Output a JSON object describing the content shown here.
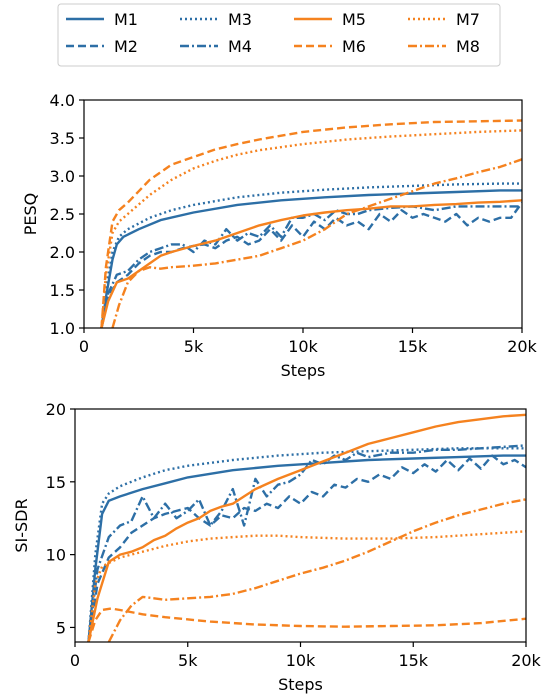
{
  "colors": {
    "blue": "#2d6fa6",
    "orange": "#f5821f",
    "axis": "#000000",
    "legend_border": "#cccccc"
  },
  "legend": {
    "placement": "top-center",
    "columns": 4,
    "entries": [
      {
        "label": "M1",
        "color": "#2d6fa6",
        "dash": "solid"
      },
      {
        "label": "M2",
        "color": "#2d6fa6",
        "dash": "dashed"
      },
      {
        "label": "M3",
        "color": "#2d6fa6",
        "dash": "dotted"
      },
      {
        "label": "M4",
        "color": "#2d6fa6",
        "dash": "dashdot"
      },
      {
        "label": "M5",
        "color": "#f5821f",
        "dash": "solid"
      },
      {
        "label": "M6",
        "color": "#f5821f",
        "dash": "dashed"
      },
      {
        "label": "M7",
        "color": "#f5821f",
        "dash": "dotted"
      },
      {
        "label": "M8",
        "color": "#f5821f",
        "dash": "dashdot"
      }
    ]
  },
  "chart_data": [
    {
      "type": "line",
      "xlabel": "Steps",
      "ylabel": "PESQ",
      "xlim": [
        0,
        20000
      ],
      "ylim": [
        1.0,
        4.0
      ],
      "xticks": [
        0,
        5000,
        10000,
        15000,
        20000
      ],
      "xticklabels": [
        "0",
        "5k",
        "10k",
        "15k",
        "20k"
      ],
      "yticks": [
        1.0,
        1.5,
        2.0,
        2.5,
        3.0,
        3.5,
        4.0
      ],
      "yticklabels": [
        "1.0",
        "1.5",
        "2.0",
        "2.5",
        "3.0",
        "3.5",
        "4.0"
      ],
      "grid": false,
      "series": [
        {
          "name": "M1",
          "color": "#2d6fa6",
          "dash": "solid",
          "x": [
            800,
            1000,
            1300,
            1500,
            1800,
            2500,
            3500,
            5000,
            7000,
            9000,
            11000,
            13000,
            15000,
            17000,
            19000,
            20000
          ],
          "y": [
            1.0,
            1.4,
            1.9,
            2.1,
            2.2,
            2.3,
            2.42,
            2.52,
            2.62,
            2.68,
            2.72,
            2.75,
            2.77,
            2.79,
            2.81,
            2.81
          ]
        },
        {
          "name": "M2",
          "color": "#2d6fa6",
          "dash": "dashed",
          "x": [
            800,
            1100,
            1500,
            2000,
            2500,
            3000,
            3500,
            4000,
            4500,
            5000,
            5500,
            6000,
            6500,
            7000,
            7500,
            8000,
            8500,
            9000,
            9500,
            10000,
            10500,
            11000,
            11500,
            12000,
            12500,
            13000,
            13500,
            14000,
            14500,
            15000,
            15500,
            16000,
            16500,
            17000,
            17500,
            18000,
            18500,
            19000,
            19500,
            20000
          ],
          "y": [
            1.0,
            1.4,
            1.6,
            1.7,
            1.85,
            1.95,
            2.0,
            2.0,
            2.05,
            2.08,
            2.1,
            2.05,
            2.15,
            2.2,
            2.1,
            2.15,
            2.3,
            2.15,
            2.35,
            2.2,
            2.4,
            2.3,
            2.45,
            2.35,
            2.4,
            2.3,
            2.5,
            2.4,
            2.55,
            2.45,
            2.5,
            2.45,
            2.4,
            2.5,
            2.35,
            2.45,
            2.4,
            2.45,
            2.45,
            2.65
          ]
        },
        {
          "name": "M3",
          "color": "#2d6fa6",
          "dash": "dotted",
          "x": [
            800,
            1000,
            1300,
            1600,
            2000,
            3000,
            4000,
            5000,
            7000,
            9000,
            11000,
            13000,
            15000,
            17000,
            19000,
            20000
          ],
          "y": [
            1.0,
            1.5,
            2.0,
            2.2,
            2.3,
            2.45,
            2.55,
            2.62,
            2.72,
            2.78,
            2.82,
            2.85,
            2.87,
            2.89,
            2.9,
            2.9
          ]
        },
        {
          "name": "M4",
          "color": "#2d6fa6",
          "dash": "dashdot",
          "x": [
            800,
            1100,
            1500,
            2000,
            2500,
            3000,
            3500,
            4000,
            4500,
            5000,
            5500,
            6000,
            6500,
            7000,
            7500,
            8000,
            8500,
            9000,
            9500,
            10000,
            10500,
            11000,
            11500,
            12000,
            12500,
            13000,
            14000,
            15000,
            16000,
            17000,
            18000,
            19000,
            20000
          ],
          "y": [
            1.0,
            1.45,
            1.7,
            1.75,
            1.9,
            2.0,
            2.05,
            2.1,
            2.1,
            2.0,
            2.15,
            2.1,
            2.3,
            2.15,
            2.25,
            2.2,
            2.35,
            2.2,
            2.45,
            2.45,
            2.5,
            2.42,
            2.55,
            2.5,
            2.5,
            2.55,
            2.58,
            2.6,
            2.55,
            2.6,
            2.6,
            2.6,
            2.6
          ]
        },
        {
          "name": "M5",
          "color": "#f5821f",
          "dash": "solid",
          "x": [
            800,
            1100,
            1500,
            2000,
            2500,
            3000,
            3500,
            4000,
            5000,
            6000,
            7000,
            8000,
            9000,
            10000,
            11000,
            12000,
            13000,
            14000,
            15000,
            16000,
            17000,
            18000,
            19000,
            20000
          ],
          "y": [
            1.0,
            1.35,
            1.6,
            1.65,
            1.75,
            1.85,
            1.95,
            2.0,
            2.08,
            2.15,
            2.25,
            2.35,
            2.42,
            2.48,
            2.52,
            2.55,
            2.57,
            2.6,
            2.6,
            2.62,
            2.63,
            2.65,
            2.66,
            2.68
          ]
        },
        {
          "name": "M6",
          "color": "#f5821f",
          "dash": "dashed",
          "x": [
            800,
            1000,
            1300,
            1600,
            2000,
            3000,
            4000,
            5000,
            6000,
            7000,
            8000,
            10000,
            12000,
            14000,
            16000,
            18000,
            20000
          ],
          "y": [
            1.0,
            1.8,
            2.4,
            2.55,
            2.65,
            2.95,
            3.15,
            3.25,
            3.35,
            3.42,
            3.48,
            3.58,
            3.64,
            3.68,
            3.71,
            3.72,
            3.73
          ]
        },
        {
          "name": "M7",
          "color": "#f5821f",
          "dash": "dotted",
          "x": [
            800,
            1000,
            1300,
            1600,
            2000,
            3000,
            4000,
            5000,
            6000,
            7000,
            8000,
            10000,
            12000,
            14000,
            16000,
            18000,
            20000
          ],
          "y": [
            1.0,
            1.7,
            2.25,
            2.4,
            2.5,
            2.75,
            2.95,
            3.1,
            3.2,
            3.28,
            3.34,
            3.42,
            3.48,
            3.52,
            3.55,
            3.58,
            3.6
          ]
        },
        {
          "name": "M8",
          "color": "#f5821f",
          "dash": "dashdot",
          "x": [
            1300,
            1600,
            2000,
            2500,
            3000,
            3500,
            4000,
            5000,
            6000,
            7000,
            8000,
            9000,
            10000,
            11000,
            12000,
            13000,
            14000,
            15000,
            16000,
            17000,
            18000,
            19000,
            20000
          ],
          "y": [
            1.0,
            1.3,
            1.6,
            1.75,
            1.8,
            1.78,
            1.8,
            1.82,
            1.85,
            1.9,
            1.95,
            2.05,
            2.15,
            2.3,
            2.5,
            2.6,
            2.7,
            2.8,
            2.9,
            2.97,
            3.05,
            3.12,
            3.22
          ]
        }
      ]
    },
    {
      "type": "line",
      "xlabel": "Steps",
      "ylabel": "SI-SDR",
      "xlim": [
        0,
        20000
      ],
      "ylim": [
        4,
        20
      ],
      "xticks": [
        0,
        5000,
        10000,
        15000,
        20000
      ],
      "xticklabels": [
        "0",
        "5k",
        "10k",
        "15k",
        "20k"
      ],
      "yticks": [
        5,
        10,
        15,
        20
      ],
      "yticklabels": [
        "5",
        "10",
        "15",
        "20"
      ],
      "grid": false,
      "series": [
        {
          "name": "M1",
          "color": "#2d6fa6",
          "dash": "solid",
          "x": [
            600,
            900,
            1200,
            1500,
            2000,
            3000,
            4000,
            5000,
            7000,
            9000,
            11000,
            13000,
            15000,
            17000,
            19000,
            20000
          ],
          "y": [
            4,
            9,
            12.8,
            13.7,
            14.0,
            14.5,
            14.9,
            15.3,
            15.8,
            16.1,
            16.3,
            16.5,
            16.6,
            16.7,
            16.8,
            16.8
          ]
        },
        {
          "name": "M2",
          "color": "#2d6fa6",
          "dash": "dashed",
          "x": [
            600,
            1000,
            1500,
            2000,
            2500,
            3000,
            3500,
            4000,
            4500,
            5000,
            5500,
            6000,
            6500,
            7000,
            7500,
            8000,
            8500,
            9000,
            9500,
            10000,
            10500,
            11000,
            11500,
            12000,
            12500,
            13000,
            13500,
            14000,
            14500,
            15000,
            15500,
            16000,
            16500,
            17000,
            17500,
            18000,
            18500,
            19000,
            19500,
            20000
          ],
          "y": [
            4,
            8,
            9.8,
            10.5,
            11.5,
            12.0,
            12.5,
            12.8,
            13.0,
            13.2,
            12.5,
            12.0,
            12.7,
            12.5,
            13.2,
            13.0,
            13.5,
            13.2,
            14.0,
            13.5,
            14.3,
            14.0,
            14.8,
            14.6,
            15.2,
            15.0,
            15.5,
            15.2,
            16.0,
            15.6,
            16.2,
            15.7,
            16.5,
            15.8,
            16.6,
            15.9,
            16.8,
            16.2,
            16.5,
            16.0
          ]
        },
        {
          "name": "M3",
          "color": "#2d6fa6",
          "dash": "dotted",
          "x": [
            600,
            900,
            1200,
            1500,
            2000,
            3000,
            4000,
            5000,
            7000,
            9000,
            11000,
            13000,
            15000,
            17000,
            19000,
            20000
          ],
          "y": [
            4,
            10,
            13.5,
            14.2,
            14.7,
            15.3,
            15.8,
            16.1,
            16.5,
            16.8,
            17.0,
            17.1,
            17.2,
            17.3,
            17.3,
            17.3
          ]
        },
        {
          "name": "M4",
          "color": "#2d6fa6",
          "dash": "dashdot",
          "x": [
            600,
            1000,
            1500,
            2000,
            2500,
            3000,
            3500,
            4000,
            4500,
            5000,
            5500,
            6000,
            6500,
            7000,
            7500,
            8000,
            8500,
            9000,
            9500,
            10000,
            10500,
            11000,
            11500,
            12000,
            12500,
            13000,
            14000,
            15000,
            16000,
            17000,
            18000,
            19000,
            20000
          ],
          "y": [
            4,
            9,
            11.2,
            12.0,
            12.3,
            14.0,
            12.5,
            13.5,
            12.5,
            13.0,
            13.8,
            12.0,
            13.0,
            14.5,
            12.0,
            15.2,
            14.0,
            14.8,
            15.0,
            15.5,
            16.5,
            16.2,
            16.8,
            16.5,
            17.0,
            16.7,
            17.0,
            17.0,
            17.2,
            17.2,
            17.3,
            17.4,
            17.5
          ]
        },
        {
          "name": "M5",
          "color": "#f5821f",
          "dash": "solid",
          "x": [
            600,
            1000,
            1500,
            2000,
            2500,
            3000,
            3500,
            4000,
            4500,
            5000,
            5500,
            6000,
            6500,
            7000,
            7500,
            8000,
            9000,
            10000,
            11000,
            12000,
            13000,
            14000,
            15000,
            16000,
            17000,
            18000,
            19000,
            20000
          ],
          "y": [
            4,
            7,
            9.5,
            10.0,
            10.2,
            10.5,
            11.0,
            11.3,
            11.8,
            12.2,
            12.5,
            13.0,
            13.3,
            13.5,
            14.0,
            14.5,
            15.2,
            15.8,
            16.4,
            17.0,
            17.6,
            18.0,
            18.4,
            18.8,
            19.1,
            19.3,
            19.5,
            19.6
          ]
        },
        {
          "name": "M6",
          "color": "#f5821f",
          "dash": "dashed",
          "x": [
            600,
            900,
            1200,
            1600,
            2000,
            3000,
            4000,
            6000,
            8000,
            10000,
            12000,
            14000,
            16000,
            18000,
            20000
          ],
          "y": [
            4,
            5.5,
            6.2,
            6.3,
            6.2,
            5.9,
            5.7,
            5.4,
            5.2,
            5.1,
            5.05,
            5.1,
            5.15,
            5.3,
            5.6
          ]
        },
        {
          "name": "M7",
          "color": "#f5821f",
          "dash": "dotted",
          "x": [
            600,
            900,
            1200,
            1600,
            2000,
            3000,
            4000,
            5000,
            6000,
            7000,
            8000,
            9000,
            10000,
            12000,
            14000,
            16000,
            18000,
            20000
          ],
          "y": [
            4,
            8,
            9.2,
            9.5,
            9.8,
            10.2,
            10.6,
            10.9,
            11.1,
            11.2,
            11.3,
            11.3,
            11.2,
            11.1,
            11.1,
            11.2,
            11.4,
            11.6
          ]
        },
        {
          "name": "M8",
          "color": "#f5821f",
          "dash": "dashdot",
          "x": [
            1500,
            2000,
            2500,
            3000,
            3500,
            4000,
            5000,
            6000,
            7000,
            8000,
            9000,
            10000,
            11000,
            12000,
            13000,
            14000,
            15000,
            16000,
            17000,
            18000,
            19000,
            20000
          ],
          "y": [
            4,
            5.5,
            6.5,
            7.1,
            7.0,
            6.9,
            7.0,
            7.1,
            7.3,
            7.7,
            8.2,
            8.7,
            9.1,
            9.6,
            10.2,
            10.9,
            11.6,
            12.2,
            12.7,
            13.1,
            13.5,
            13.8
          ]
        }
      ]
    }
  ]
}
